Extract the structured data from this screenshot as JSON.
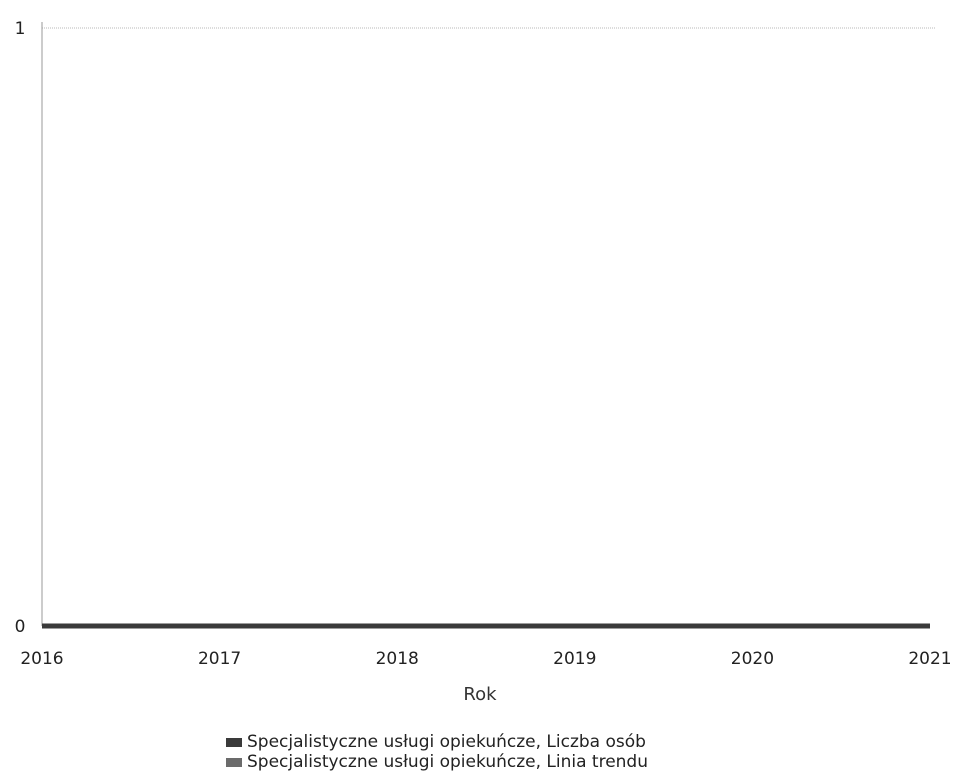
{
  "chart_data": {
    "type": "line",
    "x": [
      "2016",
      "2017",
      "2018",
      "2019",
      "2020",
      "2021"
    ],
    "xlabel": "Rok",
    "ylabel": "",
    "ylim": [
      0,
      1
    ],
    "yticks": [
      "0",
      "1"
    ],
    "series": [
      {
        "name": "Specjalistyczne usługi opiekuńcze, Liczba osób",
        "values": [
          0,
          0,
          0,
          0,
          0,
          0
        ],
        "color": "#3a3a3a"
      },
      {
        "name": "Specjalistyczne usługi opiekuńcze, Linia trendu",
        "values": [
          0,
          0,
          0,
          0,
          0,
          0
        ],
        "color": "#6b6b6b"
      }
    ],
    "grid": true,
    "legend_position": "bottom"
  }
}
